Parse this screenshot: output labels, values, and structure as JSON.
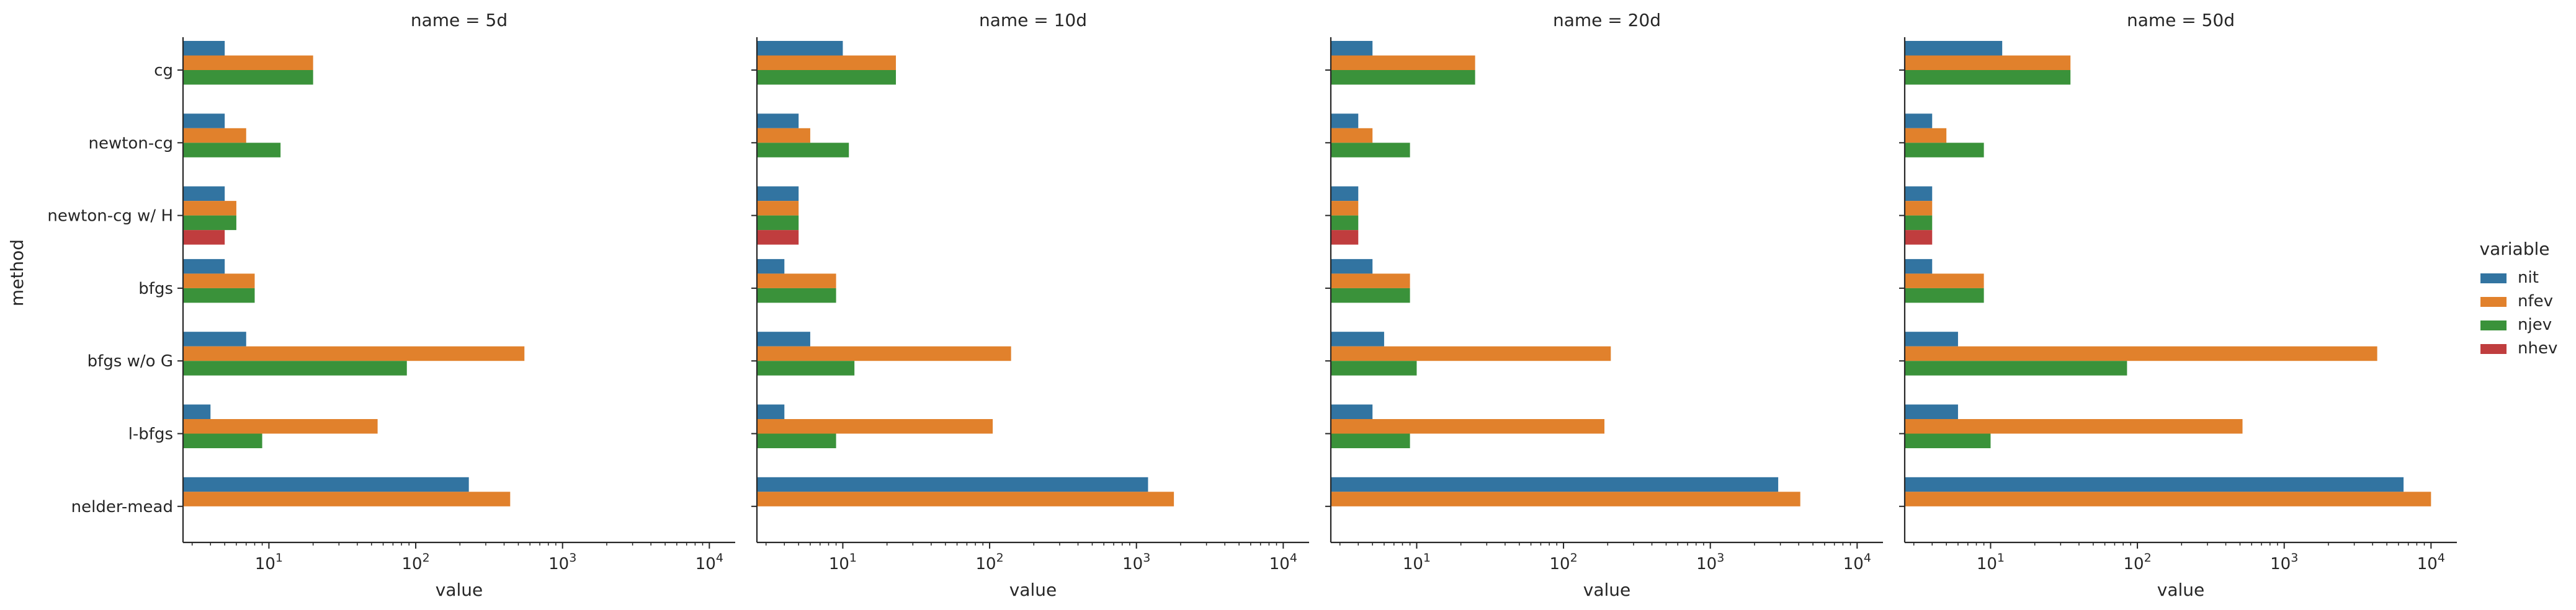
{
  "chart_data": {
    "type": "bar",
    "orientation": "horizontal",
    "x_scale": "log",
    "xlim": [
      2.6,
      15000
    ],
    "x_ticks": [
      10,
      100,
      1000,
      10000
    ],
    "x_tick_labels": [
      {
        "base": "10",
        "exp": "1"
      },
      {
        "base": "10",
        "exp": "2"
      },
      {
        "base": "10",
        "exp": "3"
      },
      {
        "base": "10",
        "exp": "4"
      }
    ],
    "xlabel": "value",
    "ylabel": "method",
    "grid": false,
    "categories": [
      "cg",
      "newton-cg",
      "newton-cg w/ H",
      "bfgs",
      "bfgs w/o G",
      "l-bfgs",
      "nelder-mead"
    ],
    "series_order": [
      "nit",
      "nfev",
      "njev",
      "nhev"
    ],
    "colors": {
      "nit": "#3274a1",
      "nfev": "#e1812c",
      "njev": "#3a923a",
      "nhev": "#c03d3e"
    },
    "legend": {
      "title": "variable",
      "entries": [
        "nit",
        "nfev",
        "njev",
        "nhev"
      ],
      "placement": "right"
    },
    "facets": [
      {
        "title": "name = 5d",
        "values": {
          "nit": [
            5,
            5,
            5,
            5,
            7,
            4,
            230
          ],
          "nfev": [
            20,
            7,
            6,
            8,
            550,
            55,
            440
          ],
          "njev": [
            20,
            12,
            6,
            8,
            87,
            9,
            null
          ],
          "nhev": [
            null,
            null,
            5,
            null,
            null,
            null,
            null
          ]
        }
      },
      {
        "title": "name = 10d",
        "values": {
          "nit": [
            10,
            5,
            5,
            4,
            6,
            4,
            1200
          ],
          "nfev": [
            23,
            6,
            5,
            9,
            140,
            105,
            1800
          ],
          "njev": [
            23,
            11,
            5,
            9,
            12,
            9,
            null
          ],
          "nhev": [
            null,
            null,
            5,
            null,
            null,
            null,
            null
          ]
        }
      },
      {
        "title": "name = 20d",
        "values": {
          "nit": [
            5,
            4,
            4,
            5,
            6,
            5,
            2900
          ],
          "nfev": [
            25,
            5,
            4,
            9,
            210,
            190,
            4100
          ],
          "njev": [
            25,
            9,
            4,
            9,
            10,
            9,
            null
          ],
          "nhev": [
            null,
            null,
            4,
            null,
            null,
            null,
            null
          ]
        }
      },
      {
        "title": "name = 50d",
        "values": {
          "nit": [
            12,
            4,
            4,
            4,
            6,
            6,
            6500
          ],
          "nfev": [
            35,
            5,
            4,
            9,
            4300,
            520,
            10000
          ],
          "njev": [
            35,
            9,
            4,
            9,
            85,
            10,
            null
          ],
          "nhev": [
            null,
            null,
            4,
            null,
            null,
            null,
            null
          ]
        }
      }
    ]
  }
}
